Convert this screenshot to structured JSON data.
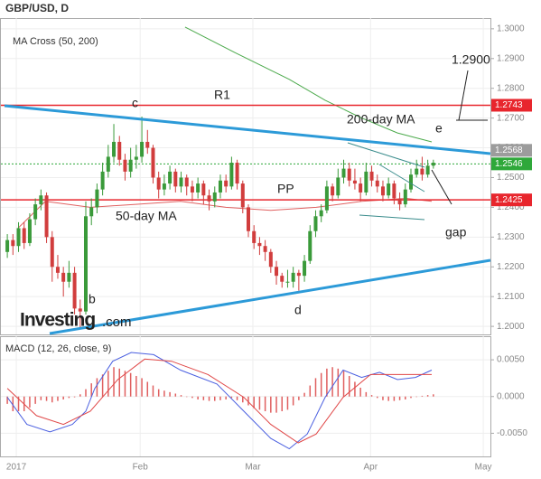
{
  "title": "GBP/USD, D",
  "watermark": {
    "brand": "Investing",
    "suffix": ".com"
  },
  "chart_data": [
    {
      "type": "candlestick",
      "legend": "MA Cross (50, 200)",
      "up_color": "#3a9a3a",
      "down_color": "#d13d3d",
      "ohlc": [
        [
          1.225,
          1.231,
          1.223,
          1.229
        ],
        [
          1.229,
          1.231,
          1.224,
          1.227
        ],
        [
          1.227,
          1.235,
          1.225,
          1.233
        ],
        [
          1.233,
          1.235,
          1.226,
          1.228
        ],
        [
          1.228,
          1.238,
          1.227,
          1.236
        ],
        [
          1.236,
          1.243,
          1.234,
          1.241
        ],
        [
          1.241,
          1.246,
          1.239,
          1.244
        ],
        [
          1.244,
          1.245,
          1.228,
          1.23
        ],
        [
          1.23,
          1.232,
          1.215,
          1.22
        ],
        [
          1.22,
          1.224,
          1.216,
          1.218
        ],
        [
          1.218,
          1.22,
          1.21,
          1.215
        ],
        [
          1.215,
          1.222,
          1.213,
          1.218
        ],
        [
          1.218,
          1.22,
          1.204,
          1.206
        ],
        [
          1.206,
          1.209,
          1.199,
          1.205
        ],
        [
          1.205,
          1.242,
          1.204,
          1.237
        ],
        [
          1.237,
          1.243,
          1.234,
          1.24
        ],
        [
          1.24,
          1.248,
          1.238,
          1.246
        ],
        [
          1.246,
          1.255,
          1.244,
          1.252
        ],
        [
          1.252,
          1.261,
          1.25,
          1.257
        ],
        [
          1.257,
          1.268,
          1.255,
          1.262
        ],
        [
          1.262,
          1.264,
          1.254,
          1.256
        ],
        [
          1.256,
          1.258,
          1.249,
          1.252
        ],
        [
          1.252,
          1.26,
          1.25,
          1.256
        ],
        [
          1.256,
          1.261,
          1.253,
          1.257
        ],
        [
          1.257,
          1.2705,
          1.255,
          1.262
        ],
        [
          1.262,
          1.266,
          1.258,
          1.26
        ],
        [
          1.26,
          1.261,
          1.248,
          1.25
        ],
        [
          1.25,
          1.252,
          1.243,
          1.246
        ],
        [
          1.246,
          1.251,
          1.244,
          1.248
        ],
        [
          1.248,
          1.254,
          1.246,
          1.252
        ],
        [
          1.252,
          1.253,
          1.245,
          1.247
        ],
        [
          1.247,
          1.252,
          1.245,
          1.25
        ],
        [
          1.25,
          1.251,
          1.244,
          1.247
        ],
        [
          1.247,
          1.249,
          1.242,
          1.245
        ],
        [
          1.245,
          1.25,
          1.243,
          1.248
        ],
        [
          1.248,
          1.249,
          1.241,
          1.244
        ],
        [
          1.244,
          1.246,
          1.239,
          1.242
        ],
        [
          1.242,
          1.247,
          1.24,
          1.245
        ],
        [
          1.245,
          1.251,
          1.243,
          1.249
        ],
        [
          1.249,
          1.251,
          1.245,
          1.247
        ],
        [
          1.247,
          1.257,
          1.246,
          1.255
        ],
        [
          1.255,
          1.256,
          1.246,
          1.248
        ],
        [
          1.248,
          1.249,
          1.238,
          1.24
        ],
        [
          1.24,
          1.241,
          1.23,
          1.232
        ],
        [
          1.232,
          1.234,
          1.226,
          1.228
        ],
        [
          1.228,
          1.23,
          1.224,
          1.227
        ],
        [
          1.227,
          1.229,
          1.222,
          1.225
        ],
        [
          1.225,
          1.226,
          1.218,
          1.22
        ],
        [
          1.22,
          1.222,
          1.214,
          1.217
        ],
        [
          1.217,
          1.218,
          1.213,
          1.215
        ],
        [
          1.215,
          1.219,
          1.213,
          1.215
        ],
        [
          1.215,
          1.22,
          1.213,
          1.218
        ],
        [
          1.218,
          1.219,
          1.212,
          1.217
        ],
        [
          1.217,
          1.224,
          1.215,
          1.222
        ],
        [
          1.222,
          1.234,
          1.221,
          1.232
        ],
        [
          1.232,
          1.239,
          1.23,
          1.237
        ],
        [
          1.237,
          1.241,
          1.235,
          1.239
        ],
        [
          1.239,
          1.249,
          1.238,
          1.247
        ],
        [
          1.247,
          1.248,
          1.242,
          1.244
        ],
        [
          1.244,
          1.253,
          1.243,
          1.25
        ],
        [
          1.25,
          1.256,
          1.248,
          1.253
        ],
        [
          1.253,
          1.255,
          1.247,
          1.249
        ],
        [
          1.249,
          1.253,
          1.246,
          1.248
        ],
        [
          1.248,
          1.25,
          1.242,
          1.245
        ],
        [
          1.245,
          1.255,
          1.244,
          1.252
        ],
        [
          1.252,
          1.254,
          1.247,
          1.249
        ],
        [
          1.249,
          1.251,
          1.245,
          1.247
        ],
        [
          1.247,
          1.249,
          1.242,
          1.244
        ],
        [
          1.244,
          1.25,
          1.243,
          1.248
        ],
        [
          1.248,
          1.249,
          1.241,
          1.243
        ],
        [
          1.243,
          1.245,
          1.239,
          1.241
        ],
        [
          1.241,
          1.248,
          1.24,
          1.246
        ],
        [
          1.246,
          1.253,
          1.245,
          1.251
        ],
        [
          1.251,
          1.256,
          1.25,
          1.253
        ],
        [
          1.253,
          1.257,
          1.249,
          1.251
        ],
        [
          1.251,
          1.256,
          1.25,
          1.254
        ],
        [
          1.254,
          1.256,
          1.253,
          1.255
        ]
      ],
      "series": [
        {
          "color": "#4caa4c",
          "x": [
            31.7,
            40.6,
            50.3,
            56.7,
            63.2,
            69.6,
            75.7
          ],
          "values": [
            1.3006,
            1.292,
            1.283,
            1.276,
            1.27,
            1.265,
            1.262
          ]
        },
        {
          "color": "#e06060",
          "x": [
            1.9,
            6.8,
            14.8,
            22.9,
            30.9,
            39.0,
            47.0,
            55.1,
            63.2,
            71.2,
            75.7
          ],
          "values": [
            1.233,
            1.242,
            1.24,
            1.241,
            1.242,
            1.24,
            1.239,
            1.24,
            1.242,
            1.243,
            1.242
          ]
        }
      ],
      "levels": [
        {
          "value": 1.2743,
          "label": "1.2743",
          "color": "#e8262d",
          "line": "solid"
        },
        {
          "value": 1.2568,
          "label": "1.2568",
          "color": "#9c9c9c",
          "line": "none"
        },
        {
          "value": 1.2546,
          "label": "1.2546",
          "color": "#2fa83a",
          "line": "dotted"
        },
        {
          "value": 1.2425,
          "label": "1.2425",
          "color": "#e8262d",
          "line": "solid"
        }
      ],
      "annotations": [
        "c",
        "R1",
        "PP",
        "50-day MA",
        "b",
        "d",
        "200-day MA",
        "e",
        "1.2900",
        "gap"
      ],
      "xlim": [
        -0.5,
        86.5
      ],
      "ylim": [
        1.1973,
        1.3036
      ],
      "yticks": [
        {
          "value": 1.3,
          "label": "1.3000"
        },
        {
          "value": 1.29,
          "label": "1.2900"
        },
        {
          "value": 1.28,
          "label": "1.2800"
        },
        {
          "value": 1.27,
          "label": "1.2700"
        },
        {
          "value": 1.26,
          "label": "1.2600"
        },
        {
          "value": 1.25,
          "label": "1.2500"
        },
        {
          "value": 1.24,
          "label": "1.2400"
        },
        {
          "value": 1.23,
          "label": "1.2300"
        },
        {
          "value": 1.22,
          "label": "1.2200"
        },
        {
          "value": 1.21,
          "label": "1.2100"
        },
        {
          "value": 1.2,
          "label": "1.2000"
        }
      ],
      "grid": true
    },
    {
      "type": "macd",
      "legend": "MACD (12, 26, close, 9)",
      "histogram": {
        "color": "#e06060",
        "values": [
          -0.001,
          -0.002,
          -0.002,
          -0.002,
          -0.0015,
          -0.001,
          -0.0005,
          -0.0006,
          -0.0008,
          -0.0006,
          -0.0004,
          -0.0002,
          -0.0001,
          0.0003,
          0.001,
          0.0018,
          0.0025,
          0.003,
          0.0035,
          0.004,
          0.0038,
          0.0035,
          0.0032,
          0.0028,
          0.0025,
          0.002,
          0.0015,
          0.001,
          0.0008,
          0.0006,
          0.0004,
          0.0002,
          0,
          -0.0002,
          -0.0004,
          -0.0005,
          -0.0006,
          -0.0006,
          -0.0005,
          -0.0004,
          -0.0002,
          -0.0005,
          -0.0008,
          -0.0012,
          -0.0016,
          -0.0018,
          -0.002,
          -0.0022,
          -0.0022,
          -0.002,
          -0.0018,
          -0.0012,
          -0.0005,
          0.0005,
          0.0015,
          0.0025,
          0.0032,
          0.0038,
          0.004,
          0.0038,
          0.0035,
          0.0028,
          0.002,
          0.0012,
          0.0006,
          0.0002,
          -0.0002,
          -0.0005,
          -0.0006,
          -0.0006,
          -0.0005,
          -0.0004,
          -0.0002,
          0,
          0.0001,
          0.0002,
          0.0003
        ]
      },
      "series": [
        {
          "color": "#4a5fe0",
          "x": [
            0,
            3.5,
            7.6,
            11.6,
            14.0,
            15.6,
            18.8,
            22.1,
            26.1,
            30.9,
            37.4,
            42.2,
            47.0,
            50.3,
            53.5,
            56.7,
            59.9,
            63.2,
            66.4,
            69.6,
            72.8,
            75.7
          ],
          "values": [
            -0.0001,
            -0.0038,
            -0.0048,
            -0.0038,
            -0.002,
            0.0011,
            0.0048,
            0.006,
            0.0057,
            0.0036,
            0.0017,
            -0.002,
            -0.0057,
            -0.0071,
            -0.0051,
            -0.0001,
            0.0036,
            0.0026,
            0.0033,
            0.0023,
            0.0026,
            0.0036
          ]
        },
        {
          "color": "#e04848",
          "x": [
            0,
            5.2,
            10.0,
            14.8,
            19.7,
            24.5,
            29.3,
            35.8,
            42.2,
            47.0,
            51.9,
            55.1,
            59.9,
            64.8,
            69.6,
            75.7
          ],
          "values": [
            0.0011,
            -0.0026,
            -0.0038,
            -0.002,
            0.0023,
            0.0051,
            0.0048,
            0.003,
            -0.0001,
            -0.0038,
            -0.0063,
            -0.0051,
            -0.0001,
            0.003,
            0.003,
            0.003
          ]
        }
      ],
      "xlim": [
        -0.5,
        86.5
      ],
      "xticks": [
        {
          "value": 1.6,
          "label": "2017"
        },
        {
          "value": 23.7,
          "label": "Feb"
        },
        {
          "value": 43.8,
          "label": "Mar"
        },
        {
          "value": 64.8,
          "label": "Apr"
        },
        {
          "value": 84.9,
          "label": "May"
        }
      ],
      "ylim": [
        -0.00815,
        0.00821
      ],
      "yticks": [
        {
          "value": 0.005,
          "label": "0.0050"
        },
        {
          "value": 0,
          "label": "0.0000"
        },
        {
          "value": -0.005,
          "label": "-0.0050"
        }
      ],
      "grid": true
    }
  ]
}
